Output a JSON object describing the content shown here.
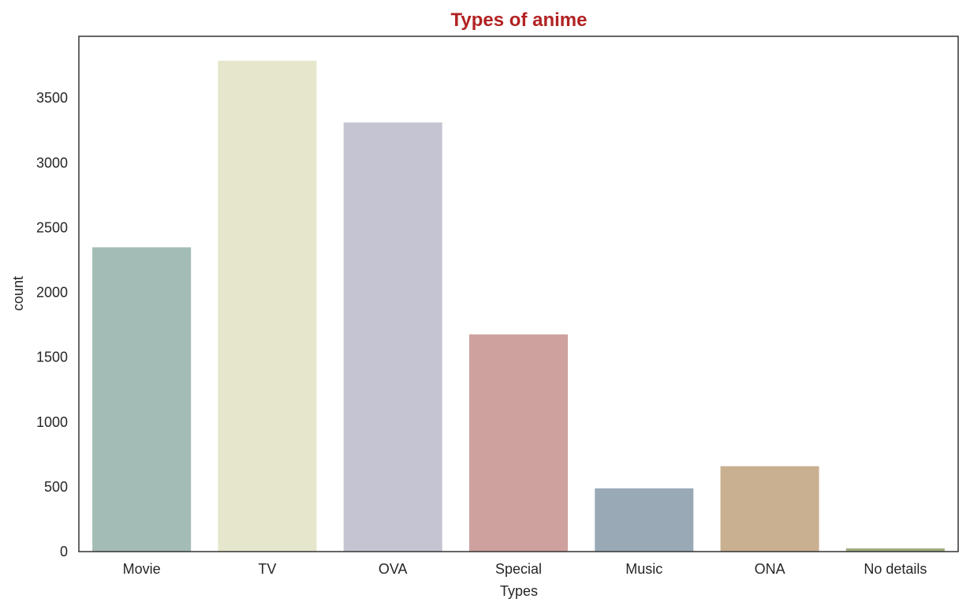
{
  "chart_data": {
    "type": "bar",
    "title": "Types of anime",
    "xlabel": "Types",
    "ylabel": "count",
    "categories": [
      "Movie",
      "TV",
      "OVA",
      "Special",
      "Music",
      "ONA",
      "No details"
    ],
    "values": [
      2348,
      3787,
      3311,
      1676,
      488,
      659,
      25
    ],
    "colors": [
      "#a3bcb6",
      "#e5e6cb",
      "#c5c4d2",
      "#cea19e",
      "#9aa9b6",
      "#c9b091",
      "#9cae7c"
    ],
    "yticks": [
      0,
      500,
      1000,
      1500,
      2000,
      2500,
      3000,
      3500
    ],
    "ylim": [
      0,
      3976
    ],
    "grid": false,
    "title_color": "#b22222"
  }
}
